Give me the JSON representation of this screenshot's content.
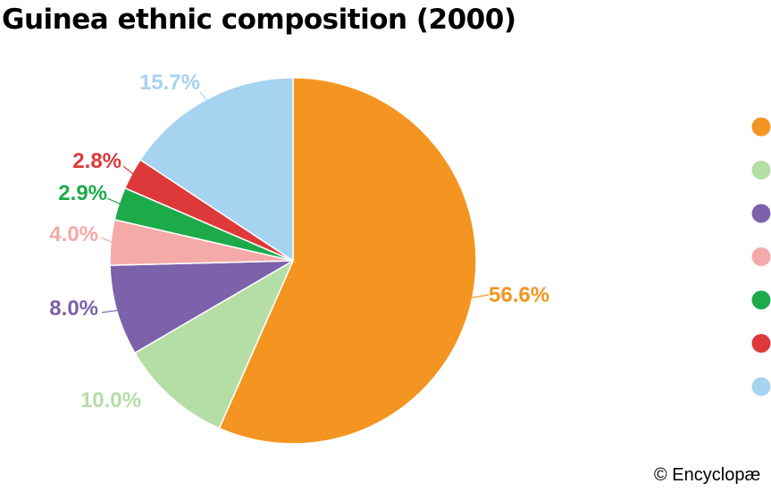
{
  "chart_data": {
    "type": "pie",
    "title": "Guinea ethnic composition (2000)",
    "start": "12 o'clock",
    "direction": "clockwise",
    "slices": [
      {
        "value": 56.6,
        "label": "56.6%",
        "color": "#F49521"
      },
      {
        "value": 10.0,
        "label": "10.0%",
        "color": "#B5DDA6"
      },
      {
        "value": 8.0,
        "label": "8.0%",
        "color": "#7B62AA"
      },
      {
        "value": 4.0,
        "label": "4.0%",
        "color": "#F4AAA8"
      },
      {
        "value": 2.9,
        "label": "2.9%",
        "color": "#1DAA4B"
      },
      {
        "value": 2.8,
        "label": "2.8%",
        "color": "#DE393A"
      },
      {
        "value": 15.7,
        "label": "15.7%",
        "color": "#A5D3F0"
      }
    ],
    "legend": {
      "placement": "right"
    }
  },
  "footer": {
    "copyright": "© Encyclopæ"
  }
}
